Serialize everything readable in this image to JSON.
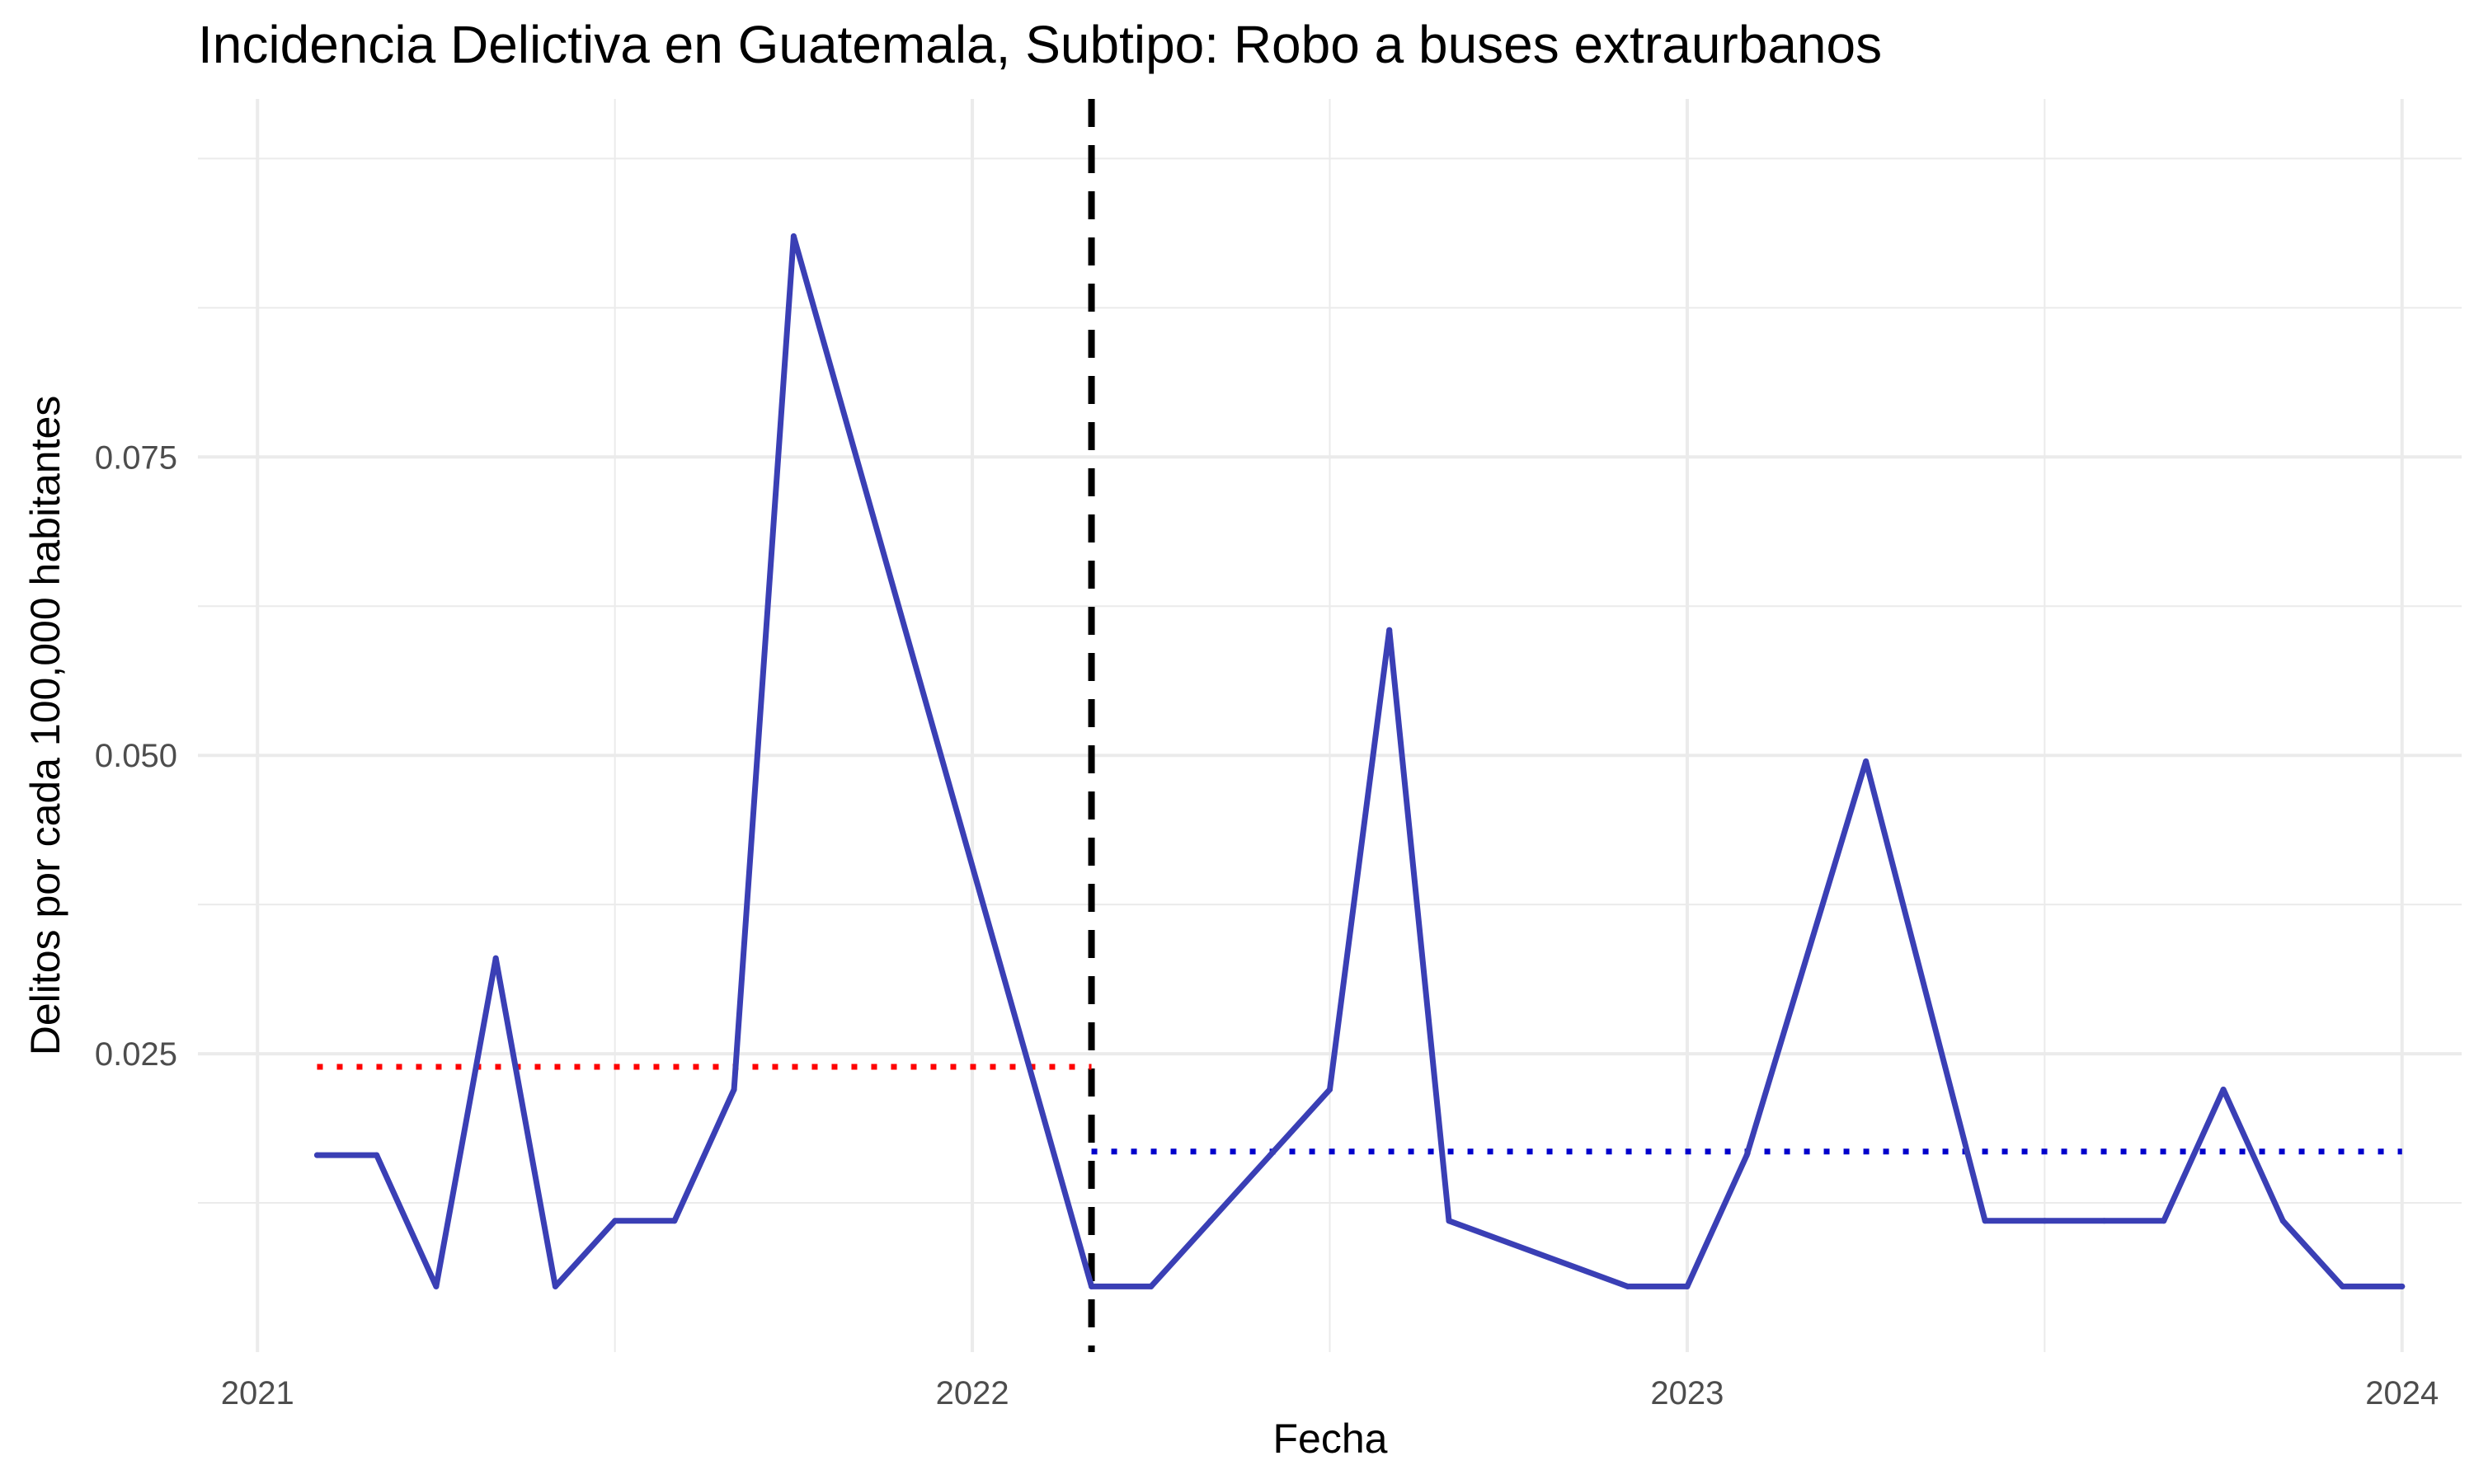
{
  "chart_data": {
    "type": "line",
    "title": "Incidencia Delictiva en Guatemala, Subtipo: Robo a buses extraurbanos",
    "xlabel": "Fecha",
    "ylabel": "Delitos por cada 100,000 habitantes",
    "x_ticks": [
      "2021",
      "2022",
      "2023",
      "2024"
    ],
    "y_ticks": [
      "0.025",
      "0.050",
      "0.075"
    ],
    "xlim": [
      "2020-12-01",
      "2024-02-01"
    ],
    "ylim": [
      0.0,
      0.105
    ],
    "grid": true,
    "legend": "none",
    "series": [
      {
        "color": "#3a3fb5",
        "x": [
          "2021-02",
          "2021-03",
          "2021-04",
          "2021-05",
          "2021-06",
          "2021-07",
          "2021-08",
          "2021-09",
          "2021-10",
          "2022-03",
          "2022-04",
          "2022-05",
          "2022-06",
          "2022-07",
          "2022-08",
          "2022-09",
          "2022-12",
          "2023-01",
          "2023-02",
          "2023-04",
          "2023-06",
          "2023-07",
          "2023-08",
          "2023-09",
          "2023-10",
          "2023-11",
          "2023-12",
          "2024-01"
        ],
        "y": [
          0.0165,
          0.0165,
          0.0055,
          0.033,
          0.0055,
          0.011,
          0.011,
          0.022,
          0.0935,
          0.0055,
          0.0055,
          0.011,
          0.0165,
          0.022,
          0.0605,
          0.011,
          0.0055,
          0.0055,
          0.0165,
          0.0495,
          0.011,
          0.011,
          0.011,
          0.011,
          0.022,
          0.011,
          0.0055,
          0.0055
        ]
      }
    ],
    "reference_lines": [
      {
        "kind": "vertical",
        "x": "2022-03",
        "color": "#000000",
        "style": "dashed"
      },
      {
        "kind": "horizontal",
        "y": 0.0239,
        "from": "2021-02",
        "to": "2022-03",
        "color": "#ff0000",
        "style": "dotted"
      },
      {
        "kind": "horizontal",
        "y": 0.0168,
        "from": "2022-03",
        "to": "2024-01",
        "color": "#0000cc",
        "style": "dotted"
      }
    ]
  }
}
